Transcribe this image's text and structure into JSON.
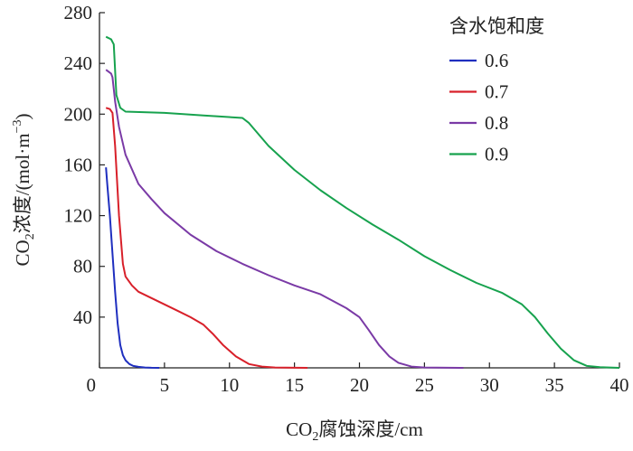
{
  "chart_data": {
    "type": "line",
    "xlabel": "CO",
    "xlabel_sub": "2",
    "xlabel_tail": "腐蚀深度/cm",
    "ylabel": "CO",
    "ylabel_sub": "2",
    "ylabel_tail": "浓度/(mol·m",
    "ylabel_sup": "−3",
    "ylabel_close": ")",
    "xlim": [
      0,
      40
    ],
    "ylim": [
      0,
      280
    ],
    "xticks": [
      0,
      5,
      10,
      15,
      20,
      25,
      30,
      35,
      40
    ],
    "yticks": [
      40,
      80,
      120,
      160,
      200,
      240,
      280
    ],
    "legend_title": "含水饱和度",
    "legend_position": "top-right",
    "grid": false,
    "series": [
      {
        "name": "0.6",
        "color": "#1f2fbf",
        "points": [
          [
            0.5,
            158
          ],
          [
            0.6,
            145
          ],
          [
            0.8,
            120
          ],
          [
            1.0,
            90
          ],
          [
            1.2,
            60
          ],
          [
            1.4,
            35
          ],
          [
            1.6,
            18
          ],
          [
            1.8,
            10
          ],
          [
            2.0,
            6
          ],
          [
            2.3,
            3
          ],
          [
            2.6,
            1.5
          ],
          [
            3.0,
            0.8
          ],
          [
            3.5,
            0.3
          ],
          [
            4.0,
            0.1
          ],
          [
            4.6,
            0
          ]
        ]
      },
      {
        "name": "0.7",
        "color": "#d8202a",
        "points": [
          [
            0.5,
            205
          ],
          [
            0.8,
            204
          ],
          [
            1.0,
            201
          ],
          [
            1.2,
            175
          ],
          [
            1.5,
            120
          ],
          [
            1.8,
            82
          ],
          [
            2.0,
            72
          ],
          [
            2.5,
            65
          ],
          [
            3.0,
            60
          ],
          [
            4.0,
            55
          ],
          [
            5.0,
            50
          ],
          [
            6.0,
            45
          ],
          [
            7.0,
            40
          ],
          [
            8.0,
            34
          ],
          [
            8.7,
            27
          ],
          [
            9.5,
            18
          ],
          [
            10.5,
            9
          ],
          [
            11.5,
            3
          ],
          [
            12.5,
            1
          ],
          [
            13.5,
            0.3
          ],
          [
            16,
            0
          ]
        ]
      },
      {
        "name": "0.8",
        "color": "#7a3aa6",
        "points": [
          [
            0.5,
            235
          ],
          [
            0.9,
            232
          ],
          [
            1.0,
            229
          ],
          [
            1.2,
            210
          ],
          [
            1.5,
            190
          ],
          [
            2.0,
            168
          ],
          [
            3.0,
            145
          ],
          [
            4.0,
            133
          ],
          [
            5.0,
            122
          ],
          [
            7.0,
            105
          ],
          [
            9.0,
            92
          ],
          [
            11.0,
            82
          ],
          [
            13.0,
            73
          ],
          [
            15.0,
            65
          ],
          [
            17.0,
            58
          ],
          [
            19.0,
            47
          ],
          [
            20.0,
            40
          ],
          [
            20.7,
            30
          ],
          [
            21.5,
            18
          ],
          [
            22.3,
            9
          ],
          [
            23.0,
            4
          ],
          [
            24.0,
            1
          ],
          [
            25.0,
            0.3
          ],
          [
            28,
            0
          ]
        ]
      },
      {
        "name": "0.9",
        "color": "#17a24e",
        "points": [
          [
            0.5,
            261
          ],
          [
            0.9,
            259
          ],
          [
            1.1,
            255
          ],
          [
            1.3,
            215
          ],
          [
            1.6,
            205
          ],
          [
            2.0,
            202
          ],
          [
            5.0,
            201
          ],
          [
            8.0,
            199
          ],
          [
            11.0,
            197
          ],
          [
            11.5,
            193
          ],
          [
            13.0,
            175
          ],
          [
            15.0,
            156
          ],
          [
            17.0,
            140
          ],
          [
            19.0,
            126
          ],
          [
            21.0,
            113
          ],
          [
            23.0,
            101
          ],
          [
            25.0,
            88
          ],
          [
            27.0,
            77
          ],
          [
            29.0,
            67
          ],
          [
            31.0,
            59
          ],
          [
            32.5,
            50
          ],
          [
            33.5,
            40
          ],
          [
            34.5,
            27
          ],
          [
            35.5,
            15
          ],
          [
            36.5,
            6
          ],
          [
            37.5,
            1.5
          ],
          [
            38.5,
            0.5
          ],
          [
            40,
            0
          ]
        ]
      }
    ]
  }
}
